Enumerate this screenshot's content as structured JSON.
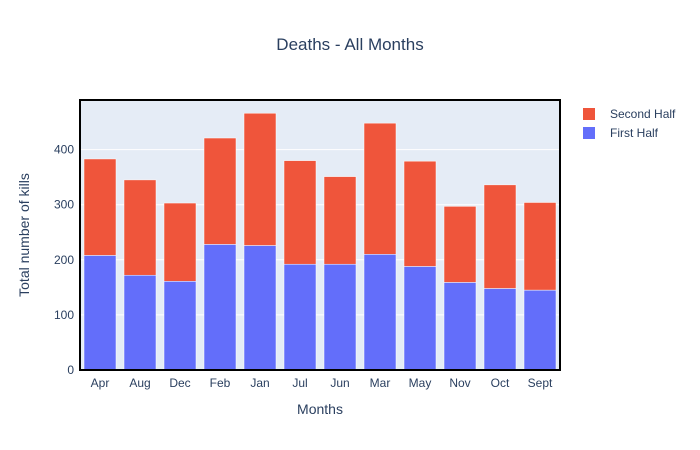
{
  "chart_data": {
    "type": "bar",
    "barmode": "stack",
    "title": "Deaths - All Months",
    "xlabel": "Months",
    "ylabel": "Total number of kills",
    "categories": [
      "Apr",
      "Aug",
      "Dec",
      "Feb",
      "Jan",
      "Jul",
      "Jun",
      "Mar",
      "May",
      "Nov",
      "Oct",
      "Sept"
    ],
    "series": [
      {
        "name": "First Half",
        "color": "#636efa",
        "values": [
          208,
          172,
          161,
          228,
          226,
          192,
          192,
          210,
          188,
          159,
          148,
          145
        ]
      },
      {
        "name": "Second Half",
        "color": "#ef553b",
        "values": [
          175,
          173,
          142,
          193,
          240,
          188,
          159,
          238,
          191,
          138,
          188,
          159
        ]
      }
    ],
    "ylim": [
      0,
      490
    ],
    "yticks": [
      0,
      100,
      200,
      300,
      400
    ],
    "grid": true,
    "legend_position": "top-right",
    "plot_background": "#e5ecf6"
  }
}
